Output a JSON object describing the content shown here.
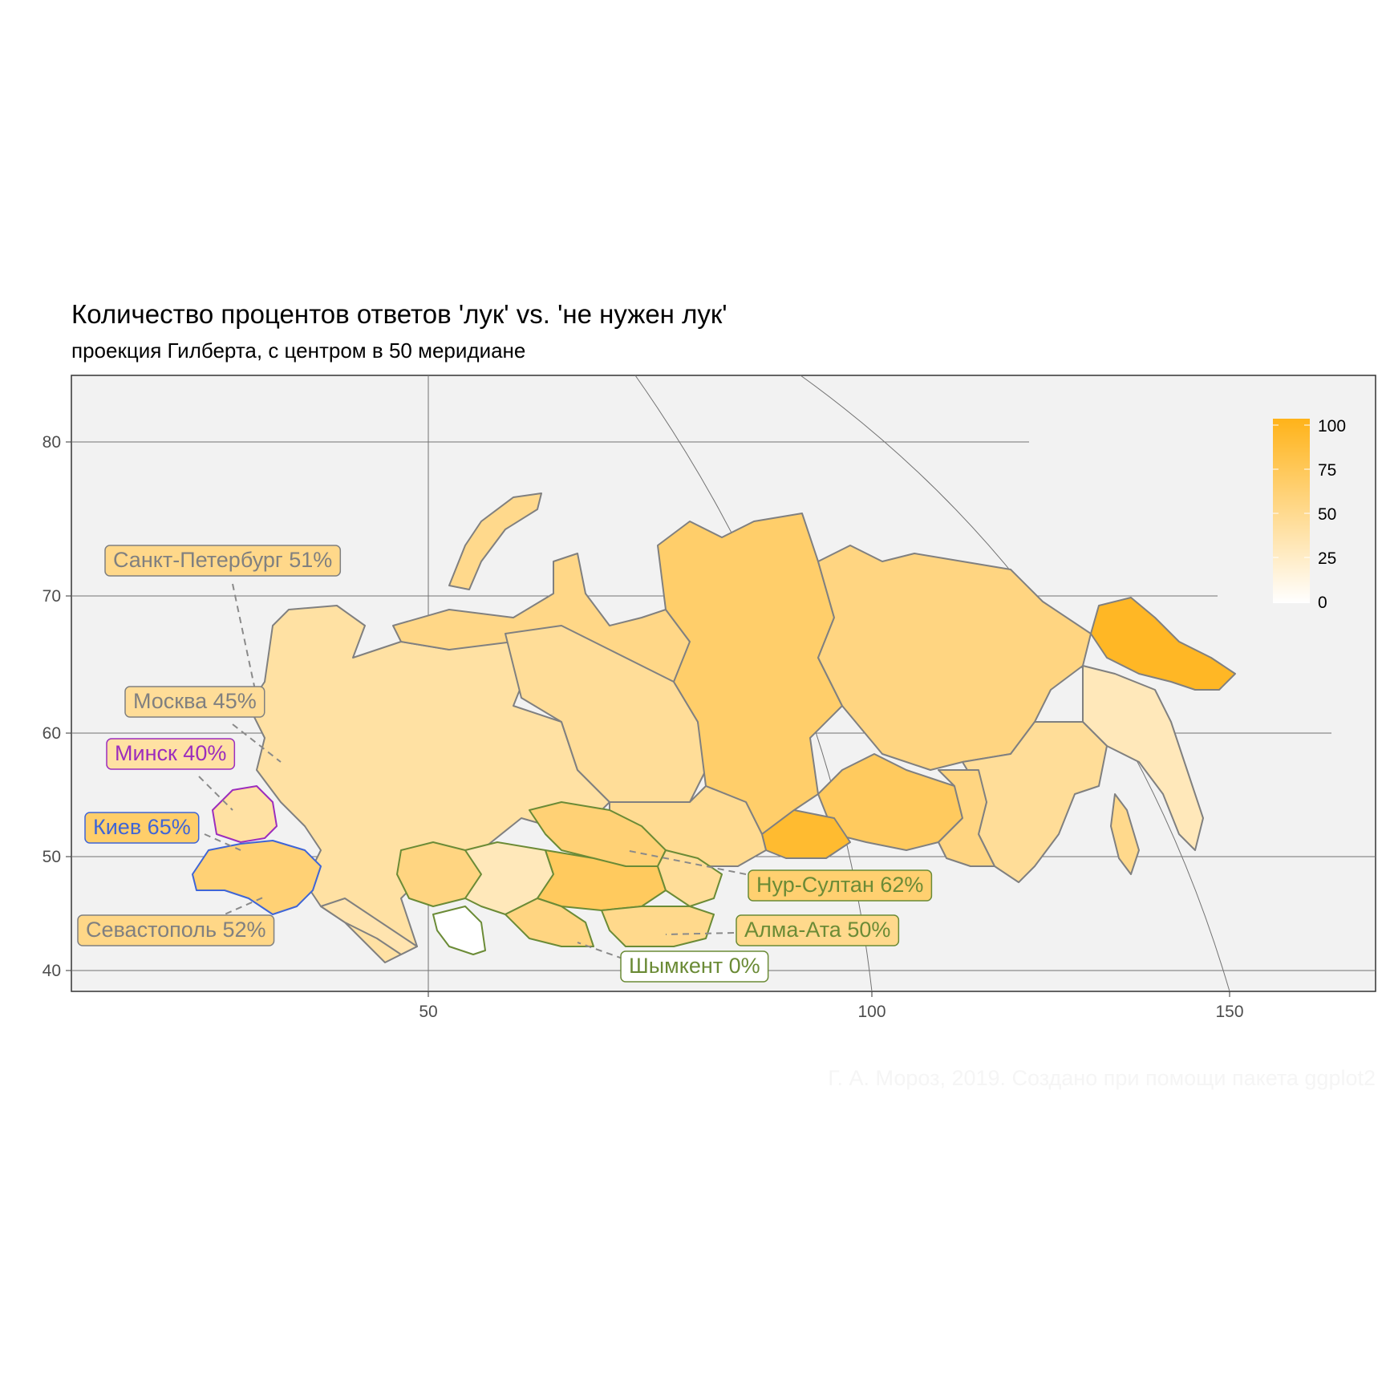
{
  "title": "Количество процентов ответов 'лук' vs. 'не нужен лук'",
  "subtitle": "проекция Гилберта, с центром в 50 меридиане",
  "caption": "Г. А. Мороз, 2019. Создано при помощи пакета ggplot2",
  "colors": {
    "panel": "#f2f2f2",
    "grid": "#737373",
    "fill_low": "#ffffff",
    "fill_high": "#ffb319",
    "russia_border": "#808080",
    "belarus": "#9c2dbd",
    "ukraine": "#3f65d6",
    "kazakhstan": "#6b8b36"
  },
  "axes": {
    "x_ticks": [
      "50",
      "100",
      "150"
    ],
    "y_ticks": [
      "80",
      "70",
      "60",
      "50",
      "40"
    ]
  },
  "legend": {
    "ticks": [
      "100",
      "75",
      "50",
      "25",
      "0"
    ],
    "range": [
      0,
      100
    ]
  },
  "labels": [
    {
      "key": "spb",
      "text": "Санкт-Петербург 51%",
      "value": 51,
      "country": "russia"
    },
    {
      "key": "moscow",
      "text": "Москва 45%",
      "value": 45,
      "country": "russia"
    },
    {
      "key": "minsk",
      "text": "Минск 40%",
      "value": 40,
      "country": "belarus"
    },
    {
      "key": "kiev",
      "text": "Киев 65%",
      "value": 65,
      "country": "ukraine"
    },
    {
      "key": "sevastopol",
      "text": "Севастополь 52%",
      "value": 52,
      "country": "russia"
    },
    {
      "key": "nursultan",
      "text": "Нур-Султан 62%",
      "value": 62,
      "country": "kazakhstan"
    },
    {
      "key": "almaata",
      "text": "Алма-Ата 50%",
      "value": 50,
      "country": "kazakhstan"
    },
    {
      "key": "shymkent",
      "text": "Шымкент 0%",
      "value": 0,
      "country": "kazakhstan"
    }
  ],
  "regions": [
    {
      "key": "russia-european",
      "country": "russia",
      "value": 40
    },
    {
      "key": "russia-north",
      "country": "russia",
      "value": 52
    },
    {
      "key": "russia-urals",
      "country": "russia",
      "value": 45
    },
    {
      "key": "russia-krasnoyarsk",
      "country": "russia",
      "value": 65
    },
    {
      "key": "russia-yakutia",
      "country": "russia",
      "value": 55
    },
    {
      "key": "russia-chukotka",
      "country": "russia",
      "value": 95
    },
    {
      "key": "russia-kamchatka",
      "country": "russia",
      "value": 30
    },
    {
      "key": "russia-khabarovsk",
      "country": "russia",
      "value": 45
    },
    {
      "key": "russia-irkutsk",
      "country": "russia",
      "value": 70
    },
    {
      "key": "russia-tuva",
      "country": "russia",
      "value": 90
    },
    {
      "key": "russia-zabaykalye",
      "country": "russia",
      "value": 55
    },
    {
      "key": "russia-south",
      "country": "russia",
      "value": 35
    },
    {
      "key": "russia-siberia-west",
      "country": "russia",
      "value": 48
    },
    {
      "key": "russia-novaya-zemlya",
      "country": "russia",
      "value": 50
    },
    {
      "key": "russia-sakhalin",
      "country": "russia",
      "value": 50
    },
    {
      "key": "belarus",
      "country": "belarus",
      "value": 40
    },
    {
      "key": "ukraine",
      "country": "ukraine",
      "value": 60
    },
    {
      "key": "kz-west",
      "country": "kazakhstan",
      "value": 55
    },
    {
      "key": "kz-north",
      "country": "kazakhstan",
      "value": 60
    },
    {
      "key": "kz-center",
      "country": "kazakhstan",
      "value": 70
    },
    {
      "key": "kz-east",
      "country": "kazakhstan",
      "value": 45
    },
    {
      "key": "kz-aral",
      "country": "kazakhstan",
      "value": 30
    },
    {
      "key": "kz-south",
      "country": "kazakhstan",
      "value": 55
    },
    {
      "key": "kz-mangystau",
      "country": "kazakhstan",
      "value": 0
    },
    {
      "key": "kz-almaty",
      "country": "kazakhstan",
      "value": 50
    }
  ]
}
